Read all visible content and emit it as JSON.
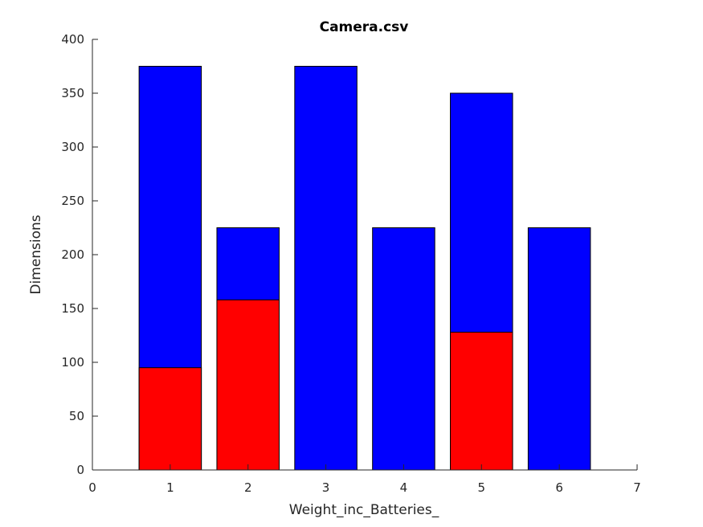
{
  "chart_data": {
    "type": "bar",
    "title": "Camera.csv",
    "xlabel": "Weight_inc_Batteries_",
    "ylabel": "Dimensions",
    "xlim": [
      0,
      7
    ],
    "ylim": [
      0,
      400
    ],
    "xticks": [
      0,
      1,
      2,
      3,
      4,
      5,
      6,
      7
    ],
    "yticks": [
      0,
      50,
      100,
      150,
      200,
      250,
      300,
      350,
      400
    ],
    "grid": false,
    "legend": "none",
    "colors": {
      "series_blue": "#0000ff",
      "series_red": "#ff0000",
      "axis": "#262626"
    },
    "categories": [
      1,
      2,
      3,
      4,
      5,
      6
    ],
    "series": [
      {
        "color": "#0000ff",
        "values": [
          375,
          225,
          375,
          225,
          350,
          225
        ]
      },
      {
        "color": "#ff0000",
        "values": [
          95,
          158,
          0,
          0,
          128,
          0
        ]
      }
    ]
  }
}
